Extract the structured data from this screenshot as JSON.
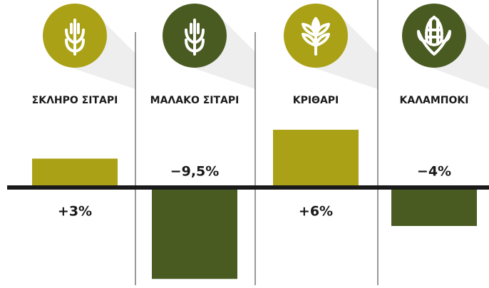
{
  "chart_data": {
    "type": "bar",
    "categories": [
      "ΣΚΛΗΡΟ ΣΙΤΑΡΙ",
      "ΜΑΛΑΚΟ ΣΙΤΑΡΙ",
      "ΚΡΙΘΑΡΙ",
      "ΚΑΛΑΜΠΟΚΙ"
    ],
    "values": [
      3,
      -9.5,
      6,
      -4
    ],
    "value_labels": [
      "+3%",
      "−9,5%",
      "+6%",
      "−4%"
    ],
    "colors": [
      "#aaa116",
      "#4a5b22",
      "#aaa116",
      "#4a5b22"
    ]
  }
}
